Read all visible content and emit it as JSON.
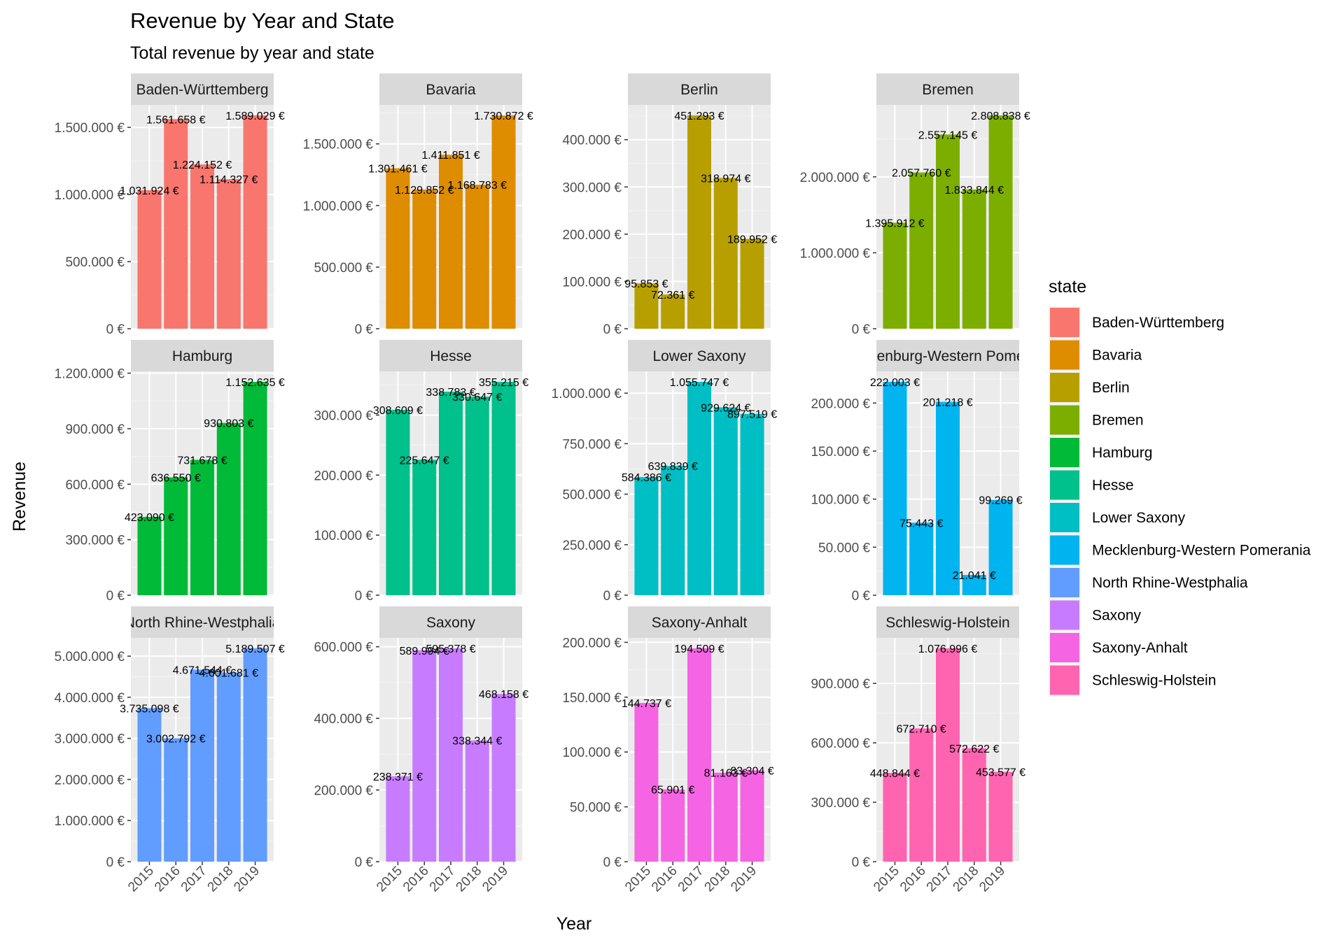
{
  "chart_data": {
    "type": "bar",
    "title": "Revenue by Year and State",
    "subtitle": "Total revenue by year and state",
    "xlabel": "Year",
    "ylabel": "Revenue",
    "categories": [
      "2015",
      "2016",
      "2017",
      "2018",
      "2019"
    ],
    "legend": {
      "title": "state",
      "position": "right",
      "entries": [
        {
          "label": "Baden-Württemberg",
          "color": "#F8766D"
        },
        {
          "label": "Bavaria",
          "color": "#DE8C00"
        },
        {
          "label": "Berlin",
          "color": "#B79F00"
        },
        {
          "label": "Bremen",
          "color": "#7CAE00"
        },
        {
          "label": "Hamburg",
          "color": "#00BA38"
        },
        {
          "label": "Hesse",
          "color": "#00C08B"
        },
        {
          "label": "Lower Saxony",
          "color": "#00BFC4"
        },
        {
          "label": "Mecklenburg-Western Pomerania",
          "color": "#00B4F0"
        },
        {
          "label": "North Rhine-Westphalia",
          "color": "#619CFF"
        },
        {
          "label": "Saxony",
          "color": "#C77CFF"
        },
        {
          "label": "Saxony-Anhalt",
          "color": "#F564E3"
        },
        {
          "label": "Schleswig-Holstein",
          "color": "#FF64B0"
        }
      ]
    },
    "grid": true,
    "facets": [
      {
        "state": "Baden-Württemberg",
        "strip_label": "Baden-Württemberg",
        "color": "#F8766D",
        "values": [
          1031924,
          1561658,
          1224152,
          1114327,
          1589029
        ],
        "labels": [
          "1.031.924 €",
          "1.561.658 €",
          "1.224.152 €",
          "1.114.327 €",
          "1.589.029 €"
        ],
        "ylim": [
          0,
          1589029
        ],
        "yticks": [
          0,
          500000,
          1000000,
          1500000
        ],
        "ytick_labels": [
          "0 €",
          "500.000 €",
          "1.000.000 €",
          "1.500.000 €"
        ]
      },
      {
        "state": "Bavaria",
        "strip_label": "Bavaria",
        "color": "#DE8C00",
        "values": [
          1301461,
          1129852,
          1411851,
          1168783,
          1730872
        ],
        "labels": [
          "1.301.461 €",
          "1.129.852 €",
          "1.411.851 €",
          "1.168.783 €",
          "1.730.872 €"
        ],
        "ylim": [
          0,
          1730872
        ],
        "yticks": [
          0,
          500000,
          1000000,
          1500000
        ],
        "ytick_labels": [
          "0 €",
          "500.000 €",
          "1.000.000 €",
          "1.500.000 €"
        ]
      },
      {
        "state": "Berlin",
        "strip_label": "Berlin",
        "color": "#B79F00",
        "values": [
          95853,
          72361,
          451293,
          318974,
          189952
        ],
        "labels": [
          "95.853 €",
          "72.361 €",
          "451.293 €",
          "318.974 €",
          "189.952 €"
        ],
        "ylim": [
          0,
          451293
        ],
        "yticks": [
          0,
          100000,
          200000,
          300000,
          400000
        ],
        "ytick_labels": [
          "0 €",
          "100.000 €",
          "200.000 €",
          "300.000 €",
          "400.000 €"
        ]
      },
      {
        "state": "Bremen",
        "strip_label": "Bremen",
        "color": "#7CAE00",
        "values": [
          1395912,
          2057760,
          2557145,
          1833844,
          2808838
        ],
        "labels": [
          "1.395.912 €",
          "2.057.760 €",
          "2.557.145 €",
          "1.833.844 €",
          "2.808.838 €"
        ],
        "ylim": [
          0,
          2808838
        ],
        "yticks": [
          0,
          1000000,
          2000000
        ],
        "ytick_labels": [
          "0 €",
          "1.000.000 €",
          "2.000.000 €"
        ]
      },
      {
        "state": "Hamburg",
        "strip_label": "Hamburg",
        "color": "#00BA38",
        "values": [
          423090,
          636550,
          731678,
          930803,
          1152635
        ],
        "labels": [
          "423.090 €",
          "636.550 €",
          "731.678 €",
          "930.803 €",
          "1.152.635 €"
        ],
        "ylim": [
          0,
          1152635
        ],
        "yticks": [
          0,
          300000,
          600000,
          900000,
          1200000
        ],
        "ytick_labels": [
          "0 €",
          "300.000 €",
          "600.000 €",
          "900.000 €",
          "1.200.000 €"
        ]
      },
      {
        "state": "Hesse",
        "strip_label": "Hesse",
        "color": "#00C08B",
        "values": [
          308609,
          225647,
          338783,
          330647,
          355215
        ],
        "labels": [
          "308.609 €",
          "225.647 €",
          "338.783 €",
          "330.647 €",
          "355.215 €"
        ],
        "ylim": [
          0,
          355215
        ],
        "yticks": [
          0,
          100000,
          200000,
          300000
        ],
        "ytick_labels": [
          "0 €",
          "100.000 €",
          "200.000 €",
          "300.000 €"
        ]
      },
      {
        "state": "Lower Saxony",
        "strip_label": "Lower Saxony",
        "color": "#00BFC4",
        "values": [
          584386,
          639839,
          1055747,
          929624,
          897519
        ],
        "labels": [
          "584.386 €",
          "639.839 €",
          "1.055.747 €",
          "929.624 €",
          "897.519 €"
        ],
        "ylim": [
          0,
          1055747
        ],
        "yticks": [
          0,
          250000,
          500000,
          750000,
          1000000
        ],
        "ytick_labels": [
          "0 €",
          "250.000 €",
          "500.000 €",
          "750.000 €",
          "1.000.000 €"
        ]
      },
      {
        "state": "Mecklenburg-Western Pomerania",
        "strip_label": "Mecklenburg-Western Pomerania",
        "color": "#00B4F0",
        "values": [
          222003,
          75443,
          201218,
          21041,
          99269
        ],
        "labels": [
          "222.003 €",
          "75.443 €",
          "201.218 €",
          "21.041 €",
          "99.269 €"
        ],
        "ylim": [
          0,
          222003
        ],
        "yticks": [
          0,
          50000,
          100000,
          150000,
          200000
        ],
        "ytick_labels": [
          "0 €",
          "50.000 €",
          "100.000 €",
          "150.000 €",
          "200.000 €"
        ]
      },
      {
        "state": "North Rhine-Westphalia",
        "strip_label": "North Rhine-Westphalia",
        "color": "#619CFF",
        "values": [
          3735098,
          3002792,
          4671544,
          4601681,
          5189507
        ],
        "labels": [
          "3.735.098 €",
          "3.002.792 €",
          "4.671.544 €",
          "4.601.681 €",
          "5.189.507 €"
        ],
        "ylim": [
          0,
          5189507
        ],
        "yticks": [
          0,
          1000000,
          2000000,
          3000000,
          4000000,
          5000000
        ],
        "ytick_labels": [
          "0 €",
          "1.000.000 €",
          "2.000.000 €",
          "3.000.000 €",
          "4.000.000 €",
          "5.000.000 €"
        ]
      },
      {
        "state": "Saxony",
        "strip_label": "Saxony",
        "color": "#C77CFF",
        "values": [
          238371,
          589994,
          595378,
          338344,
          468158
        ],
        "labels": [
          "238.371 €",
          "589.994 €",
          "595.378 €",
          "338.344 €",
          "468.158 €"
        ],
        "ylim": [
          0,
          595378
        ],
        "yticks": [
          0,
          200000,
          400000,
          600000
        ],
        "ytick_labels": [
          "0 €",
          "200.000 €",
          "400.000 €",
          "600.000 €"
        ]
      },
      {
        "state": "Saxony-Anhalt",
        "strip_label": "Saxony-Anhalt",
        "color": "#F564E3",
        "values": [
          144737,
          65901,
          194509,
          81163,
          83304
        ],
        "labels": [
          "144.737 €",
          "65.901 €",
          "194.509 €",
          "81.163 €",
          "83.304 €"
        ],
        "ylim": [
          0,
          194509
        ],
        "yticks": [
          0,
          50000,
          100000,
          150000,
          200000
        ],
        "ytick_labels": [
          "0 €",
          "50.000 €",
          "100.000 €",
          "150.000 €",
          "200.000 €"
        ]
      },
      {
        "state": "Schleswig-Holstein",
        "strip_label": "Schleswig-Holstein",
        "color": "#FF64B0",
        "values": [
          448844,
          672710,
          1076996,
          572622,
          453577
        ],
        "labels": [
          "448.844 €",
          "672.710 €",
          "1.076.996 €",
          "572.622 €",
          "453.577 €"
        ],
        "ylim": [
          0,
          1076996
        ],
        "yticks": [
          0,
          300000,
          600000,
          900000
        ],
        "ytick_labels": [
          "0 €",
          "300.000 €",
          "600.000 €",
          "900.000 €"
        ]
      }
    ]
  }
}
